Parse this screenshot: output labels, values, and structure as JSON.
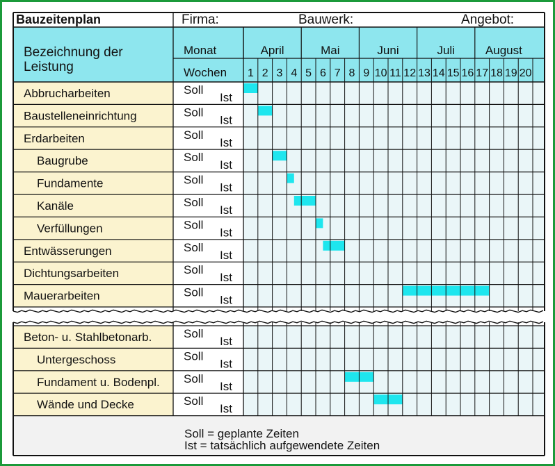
{
  "header": {
    "title": "Bauzeitenplan",
    "firma_label": "Firma:",
    "bauwerk_label": "Bauwerk:",
    "angebot_label": "Angebot:"
  },
  "columns": {
    "bezeichnung": "Bezeichnung der\nLeistung",
    "monat": "Monat",
    "wochen": "Wochen"
  },
  "months": [
    "April",
    "Mai",
    "Juni",
    "Juli",
    "August"
  ],
  "weeks": [
    "1",
    "2",
    "3",
    "4",
    "5",
    "6",
    "7",
    "8",
    "9",
    "10",
    "11",
    "12",
    "13",
    "14",
    "15",
    "16",
    "17",
    "18",
    "19",
    "20"
  ],
  "soll_label": "Soll",
  "ist_label": "Ist",
  "tasks_top": [
    {
      "name": "Abbrucharbeiten",
      "indent": false,
      "soll": [
        1.0,
        2.0
      ]
    },
    {
      "name": "Baustelleneinrichtung",
      "indent": false,
      "soll": [
        2.0,
        3.0
      ]
    },
    {
      "name": "Erdarbeiten",
      "indent": false,
      "soll": null
    },
    {
      "name": "Baugrube",
      "indent": true,
      "soll": [
        3.0,
        4.0
      ]
    },
    {
      "name": "Fundamente",
      "indent": true,
      "soll": [
        4.0,
        4.5
      ]
    },
    {
      "name": "Kanäle",
      "indent": true,
      "soll": [
        4.5,
        6.0
      ]
    },
    {
      "name": "Verfüllungen",
      "indent": true,
      "soll": [
        6.0,
        6.5
      ]
    },
    {
      "name": "Entwässerungen",
      "indent": false,
      "soll": [
        6.5,
        8.0
      ]
    },
    {
      "name": "Dichtungsarbeiten",
      "indent": false,
      "soll": null
    },
    {
      "name": "Mauerarbeiten",
      "indent": false,
      "soll": [
        12.0,
        18.0
      ]
    }
  ],
  "tasks_bottom": [
    {
      "name": "Beton- u. Stahlbetonarb.",
      "indent": false,
      "soll": null
    },
    {
      "name": "Untergeschoss",
      "indent": true,
      "soll": null
    },
    {
      "name": "Fundament u. Bodenpl.",
      "indent": true,
      "soll": [
        8.0,
        10.0
      ]
    },
    {
      "name": "Wände und Decke",
      "indent": true,
      "soll": [
        10.0,
        12.0
      ]
    }
  ],
  "legend": [
    "Soll = geplante Zeiten",
    "Ist    = tatsächlich aufgewendete Zeiten"
  ],
  "colors": {
    "header_bg": "#8ee6ee",
    "label_bg": "#fbf3cf",
    "grid_bg": "#eaf6f8",
    "bar": "#1ee6ee",
    "border": "#1b9a3a",
    "line": "#111111"
  }
}
